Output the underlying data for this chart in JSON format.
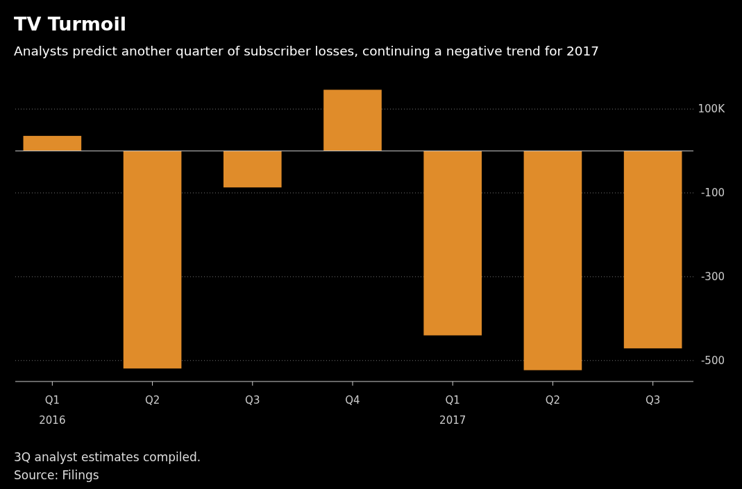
{
  "chart_data": {
    "type": "bar",
    "title": "TV Turmoil",
    "subtitle": "Analysts predict another quarter of subscriber losses, continuing a negative trend for 2017",
    "categories": [
      "Q1\n2016",
      "Q2",
      "Q3",
      "Q4",
      "Q1\n2017",
      "Q2",
      "Q3"
    ],
    "values": [
      36,
      -519,
      -87,
      146,
      -440,
      -523,
      -471
    ],
    "color": "#e08c2a",
    "ylim": [
      -550,
      150
    ],
    "yticks": [
      {
        "value": 100,
        "label": "100K"
      },
      -100,
      -300,
      -500
    ],
    "grid": "y",
    "annotations": [
      "3Q analyst estimates compiled.",
      "Source: Filings"
    ]
  }
}
